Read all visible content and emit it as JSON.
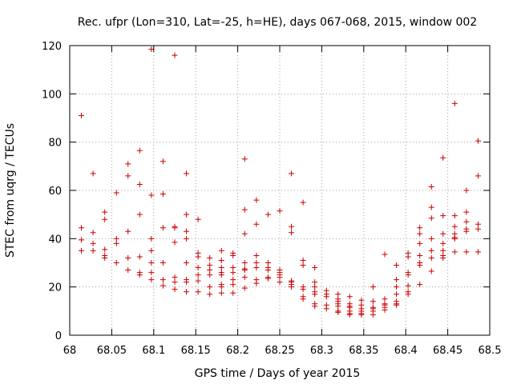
{
  "chart_data": {
    "type": "scatter",
    "title": "Rec. ufpr (Lon=310, Lat=-25, h=HE), days 067-068, 2015, window 002",
    "xlabel": "GPS time / Days of year 2015",
    "ylabel": "STEC from uqrg / TECUs",
    "xlim": [
      68,
      68.5
    ],
    "ylim": [
      0,
      120
    ],
    "x_ticks": [
      68,
      68.05,
      68.1,
      68.15,
      68.2,
      68.25,
      68.3,
      68.35,
      68.4,
      68.45,
      68.5
    ],
    "x_tick_labels": [
      "68",
      "68.05",
      "68.1",
      "68.15",
      "68.2",
      "68.25",
      "68.3",
      "68.35",
      "68.4",
      "68.45",
      "68.5"
    ],
    "y_ticks": [
      0,
      20,
      40,
      60,
      80,
      100,
      120
    ],
    "y_tick_labels": [
      "0",
      "20",
      "40",
      "60",
      "80",
      "100",
      "120"
    ],
    "grid": true,
    "marker": "+",
    "color": "#cc0000",
    "points": [
      [
        68.0139,
        91
      ],
      [
        68.0139,
        44.5
      ],
      [
        68.0139,
        39.5
      ],
      [
        68.0139,
        35
      ],
      [
        68.0278,
        67
      ],
      [
        68.0278,
        42.5
      ],
      [
        68.0278,
        38
      ],
      [
        68.0278,
        35
      ],
      [
        68.0417,
        51
      ],
      [
        68.0417,
        48
      ],
      [
        68.0417,
        35.5
      ],
      [
        68.0417,
        33
      ],
      [
        68.0417,
        32
      ],
      [
        68.0556,
        59
      ],
      [
        68.0556,
        40
      ],
      [
        68.0556,
        38
      ],
      [
        68.0556,
        30
      ],
      [
        68.0694,
        71
      ],
      [
        68.0694,
        66
      ],
      [
        68.0694,
        43
      ],
      [
        68.0694,
        32
      ],
      [
        68.0694,
        27
      ],
      [
        68.0833,
        76.5
      ],
      [
        68.0833,
        62.5
      ],
      [
        68.0833,
        50
      ],
      [
        68.0833,
        32.5
      ],
      [
        68.0833,
        26
      ],
      [
        68.0833,
        25
      ],
      [
        68.0972,
        118.5
      ],
      [
        68.0972,
        58
      ],
      [
        68.0972,
        40
      ],
      [
        68.0972,
        35
      ],
      [
        68.0972,
        30
      ],
      [
        68.0972,
        26
      ],
      [
        68.0972,
        23
      ],
      [
        68.1111,
        72
      ],
      [
        68.1111,
        58.5
      ],
      [
        68.1111,
        44.5
      ],
      [
        68.1111,
        30
      ],
      [
        68.1111,
        23
      ],
      [
        68.1111,
        20.5
      ],
      [
        68.125,
        116
      ],
      [
        68.125,
        45
      ],
      [
        68.125,
        44.5
      ],
      [
        68.125,
        38.5
      ],
      [
        68.125,
        24
      ],
      [
        68.125,
        22
      ],
      [
        68.125,
        19
      ],
      [
        68.1389,
        67
      ],
      [
        68.1389,
        50
      ],
      [
        68.1389,
        43
      ],
      [
        68.1389,
        40
      ],
      [
        68.1389,
        30
      ],
      [
        68.1389,
        23
      ],
      [
        68.1389,
        22
      ],
      [
        68.1389,
        18
      ],
      [
        68.1528,
        48
      ],
      [
        68.1528,
        34
      ],
      [
        68.1528,
        32.5
      ],
      [
        68.1528,
        28
      ],
      [
        68.1528,
        25
      ],
      [
        68.1528,
        22.5
      ],
      [
        68.1528,
        18
      ],
      [
        68.1667,
        32
      ],
      [
        68.1667,
        29
      ],
      [
        68.1667,
        27
      ],
      [
        68.1667,
        25
      ],
      [
        68.1667,
        20
      ],
      [
        68.1667,
        17
      ],
      [
        68.1806,
        35
      ],
      [
        68.1806,
        31
      ],
      [
        68.1806,
        28
      ],
      [
        68.1806,
        26
      ],
      [
        68.1806,
        25
      ],
      [
        68.1806,
        21
      ],
      [
        68.1806,
        20
      ],
      [
        68.1806,
        17.5
      ],
      [
        68.1944,
        34
      ],
      [
        68.1944,
        33
      ],
      [
        68.1944,
        28
      ],
      [
        68.1944,
        26
      ],
      [
        68.1944,
        23
      ],
      [
        68.1944,
        21
      ],
      [
        68.1944,
        17.5
      ],
      [
        68.2083,
        73
      ],
      [
        68.2083,
        52
      ],
      [
        68.2083,
        42
      ],
      [
        68.2083,
        30
      ],
      [
        68.2083,
        27.5
      ],
      [
        68.2083,
        27
      ],
      [
        68.2083,
        24
      ],
      [
        68.2083,
        19.5
      ],
      [
        68.2222,
        56
      ],
      [
        68.2222,
        46
      ],
      [
        68.2222,
        33
      ],
      [
        68.2222,
        30
      ],
      [
        68.2222,
        28
      ],
      [
        68.2222,
        23
      ],
      [
        68.2222,
        21.5
      ],
      [
        68.2361,
        50
      ],
      [
        68.2361,
        30
      ],
      [
        68.2361,
        28
      ],
      [
        68.2361,
        27
      ],
      [
        68.2361,
        24
      ],
      [
        68.2361,
        23.5
      ],
      [
        68.25,
        51.5
      ],
      [
        68.25,
        27
      ],
      [
        68.25,
        26
      ],
      [
        68.25,
        25
      ],
      [
        68.25,
        24
      ],
      [
        68.25,
        22
      ],
      [
        68.2639,
        67
      ],
      [
        68.2639,
        45
      ],
      [
        68.2639,
        42.5
      ],
      [
        68.2639,
        22.5
      ],
      [
        68.2639,
        22
      ],
      [
        68.2639,
        21
      ],
      [
        68.2639,
        20
      ],
      [
        68.2778,
        55
      ],
      [
        68.2778,
        31
      ],
      [
        68.2778,
        29
      ],
      [
        68.2778,
        20
      ],
      [
        68.2778,
        19
      ],
      [
        68.2778,
        16
      ],
      [
        68.2778,
        15
      ],
      [
        68.2917,
        28
      ],
      [
        68.2917,
        22
      ],
      [
        68.2917,
        20
      ],
      [
        68.2917,
        18
      ],
      [
        68.2917,
        17
      ],
      [
        68.2917,
        13
      ],
      [
        68.2917,
        12
      ],
      [
        68.3056,
        18.5
      ],
      [
        68.3056,
        17
      ],
      [
        68.3056,
        16
      ],
      [
        68.3056,
        12.5
      ],
      [
        68.3056,
        11
      ],
      [
        68.3194,
        17
      ],
      [
        68.3194,
        15
      ],
      [
        68.3194,
        14
      ],
      [
        68.3194,
        13
      ],
      [
        68.3194,
        12
      ],
      [
        68.3194,
        10
      ],
      [
        68.3194,
        9.5
      ],
      [
        68.3333,
        16
      ],
      [
        68.3333,
        13
      ],
      [
        68.3333,
        12
      ],
      [
        68.3333,
        11.5
      ],
      [
        68.3333,
        10
      ],
      [
        68.3333,
        9
      ],
      [
        68.3333,
        8.5
      ],
      [
        68.3472,
        14.5
      ],
      [
        68.3472,
        12.5
      ],
      [
        68.3472,
        11
      ],
      [
        68.3472,
        10
      ],
      [
        68.3472,
        9
      ],
      [
        68.3472,
        8.5
      ],
      [
        68.3611,
        20
      ],
      [
        68.3611,
        14
      ],
      [
        68.3611,
        11.5
      ],
      [
        68.3611,
        11
      ],
      [
        68.3611,
        10
      ],
      [
        68.3611,
        8.5
      ],
      [
        68.375,
        33.5
      ],
      [
        68.375,
        15
      ],
      [
        68.375,
        13
      ],
      [
        68.375,
        12.5
      ],
      [
        68.375,
        11.5
      ],
      [
        68.375,
        10.5
      ],
      [
        68.3889,
        29
      ],
      [
        68.3889,
        23
      ],
      [
        68.3889,
        20
      ],
      [
        68.3889,
        17
      ],
      [
        68.3889,
        14
      ],
      [
        68.3889,
        13
      ],
      [
        68.3889,
        12.5
      ],
      [
        68.4028,
        34
      ],
      [
        68.4028,
        32.5
      ],
      [
        68.4028,
        26
      ],
      [
        68.4028,
        25
      ],
      [
        68.4028,
        20.5
      ],
      [
        68.4028,
        18
      ],
      [
        68.4028,
        17
      ],
      [
        68.4167,
        44.5
      ],
      [
        68.4167,
        42
      ],
      [
        68.4167,
        38
      ],
      [
        68.4167,
        33
      ],
      [
        68.4167,
        30
      ],
      [
        68.4167,
        29
      ],
      [
        68.4167,
        21
      ],
      [
        68.4306,
        61.5
      ],
      [
        68.4306,
        53
      ],
      [
        68.4306,
        48.5
      ],
      [
        68.4306,
        40
      ],
      [
        68.4306,
        35
      ],
      [
        68.4306,
        32
      ],
      [
        68.4306,
        26.5
      ],
      [
        68.4444,
        73.5
      ],
      [
        68.4444,
        49.5
      ],
      [
        68.4444,
        42
      ],
      [
        68.4444,
        38
      ],
      [
        68.4444,
        35
      ],
      [
        68.4444,
        33
      ],
      [
        68.4444,
        32
      ],
      [
        68.4583,
        96
      ],
      [
        68.4583,
        49.5
      ],
      [
        68.4583,
        45
      ],
      [
        68.4583,
        42
      ],
      [
        68.4583,
        40.5
      ],
      [
        68.4583,
        40
      ],
      [
        68.4583,
        34.5
      ],
      [
        68.4722,
        60
      ],
      [
        68.4722,
        51
      ],
      [
        68.4722,
        47
      ],
      [
        68.4722,
        44
      ],
      [
        68.4722,
        43
      ],
      [
        68.4722,
        34.5
      ],
      [
        68.4861,
        80.5
      ],
      [
        68.4861,
        66
      ],
      [
        68.4861,
        46
      ],
      [
        68.4861,
        44
      ],
      [
        68.4861,
        34.5
      ]
    ]
  }
}
